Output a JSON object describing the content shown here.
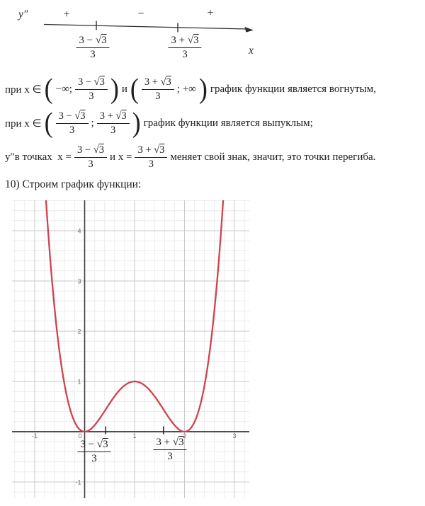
{
  "colors": {
    "ink": "#1e1e1e",
    "curve": "#d0434d",
    "grid_minor": "#ececec",
    "grid_major": "#c9c9c9",
    "axis": "#4f4f4f",
    "inflection_tick": "#222222",
    "tick_label": "#6e6e6e"
  },
  "symbols": {
    "sqrt": "√",
    "lparen": "(",
    "rparen": ")"
  },
  "math": {
    "frac_minus": {
      "pre": "3 − ",
      "rad": "3",
      "den": "3"
    },
    "frac_plus": {
      "pre": "3 + ",
      "rad": "3",
      "den": "3"
    }
  },
  "sign_chart": {
    "y_label": "y″",
    "x_label": "x",
    "signs": [
      "+",
      "−",
      "+"
    ]
  },
  "paragraphs": {
    "p1": {
      "t1": "при x ∈",
      "t2": "−∞;",
      "t3": "и",
      "t4": "; +∞",
      "t5": "график функции является вогнутым,"
    },
    "p2": {
      "t1": "при x ∈",
      "t2": ";",
      "t3": "график функции является выпуклым;"
    },
    "p3": {
      "t1": "y″в точках  x =",
      "t2": "и x =",
      "t3": "меняет свой знак, значит, это точки перегиба."
    },
    "p4": "10) Строим график функции:"
  },
  "chart_data": {
    "type": "line",
    "title": "",
    "xlabel": "",
    "ylabel": "",
    "x_range": [
      -1.4539,
      3.2979
    ],
    "y_range": [
      -1.3239,
      4.6056
    ],
    "minor_step": 0.2,
    "grid": true,
    "x_ticks": {
      "values": [
        -1,
        0,
        1,
        2,
        3
      ],
      "labels": [
        "-1",
        "0",
        "1",
        "2",
        "3"
      ]
    },
    "y_ticks": {
      "values": [
        -1,
        1,
        2,
        3,
        4
      ],
      "labels": [
        "-1",
        "1",
        "2",
        "3",
        "4"
      ]
    },
    "curve": {
      "function": "y = x⁴ − 4x³ + 4x² = x²(x−2)²",
      "polynomial_coeffs": [
        0,
        0,
        4,
        -4,
        1
      ],
      "sample_min": -0.82,
      "sample_max": 2.82,
      "sample_step": 0.02
    },
    "key_points": {
      "minima": [
        [
          0,
          0
        ],
        [
          2,
          0
        ]
      ],
      "local_maximum": [
        1,
        1
      ],
      "inflection_points_x": [
        0.4226,
        1.5774
      ]
    },
    "inflection_tick_labels": [
      "(3 − √3)/3",
      "(3 + √3)/3"
    ]
  }
}
